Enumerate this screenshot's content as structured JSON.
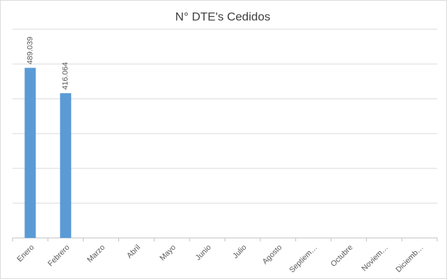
{
  "chart_data": {
    "type": "bar",
    "title": "N° DTE's Cedidos",
    "categories": [
      "Enero",
      "Febrero",
      "Marzo",
      "Abril",
      "Mayo",
      "Junio",
      "Julio",
      "Agosto",
      "Septiem…",
      "Octubre",
      "Noviem…",
      "Diciemb…"
    ],
    "values": [
      489039,
      416064,
      null,
      null,
      null,
      null,
      null,
      null,
      null,
      null,
      null,
      null
    ],
    "value_labels": [
      "489.039",
      "416.064",
      null,
      null,
      null,
      null,
      null,
      null,
      null,
      null,
      null,
      null
    ],
    "color": "#5b9bd5",
    "ylim": [
      0,
      600000
    ],
    "yticks": [
      0,
      100000,
      200000,
      300000,
      400000,
      500000,
      600000
    ],
    "grid": true
  }
}
